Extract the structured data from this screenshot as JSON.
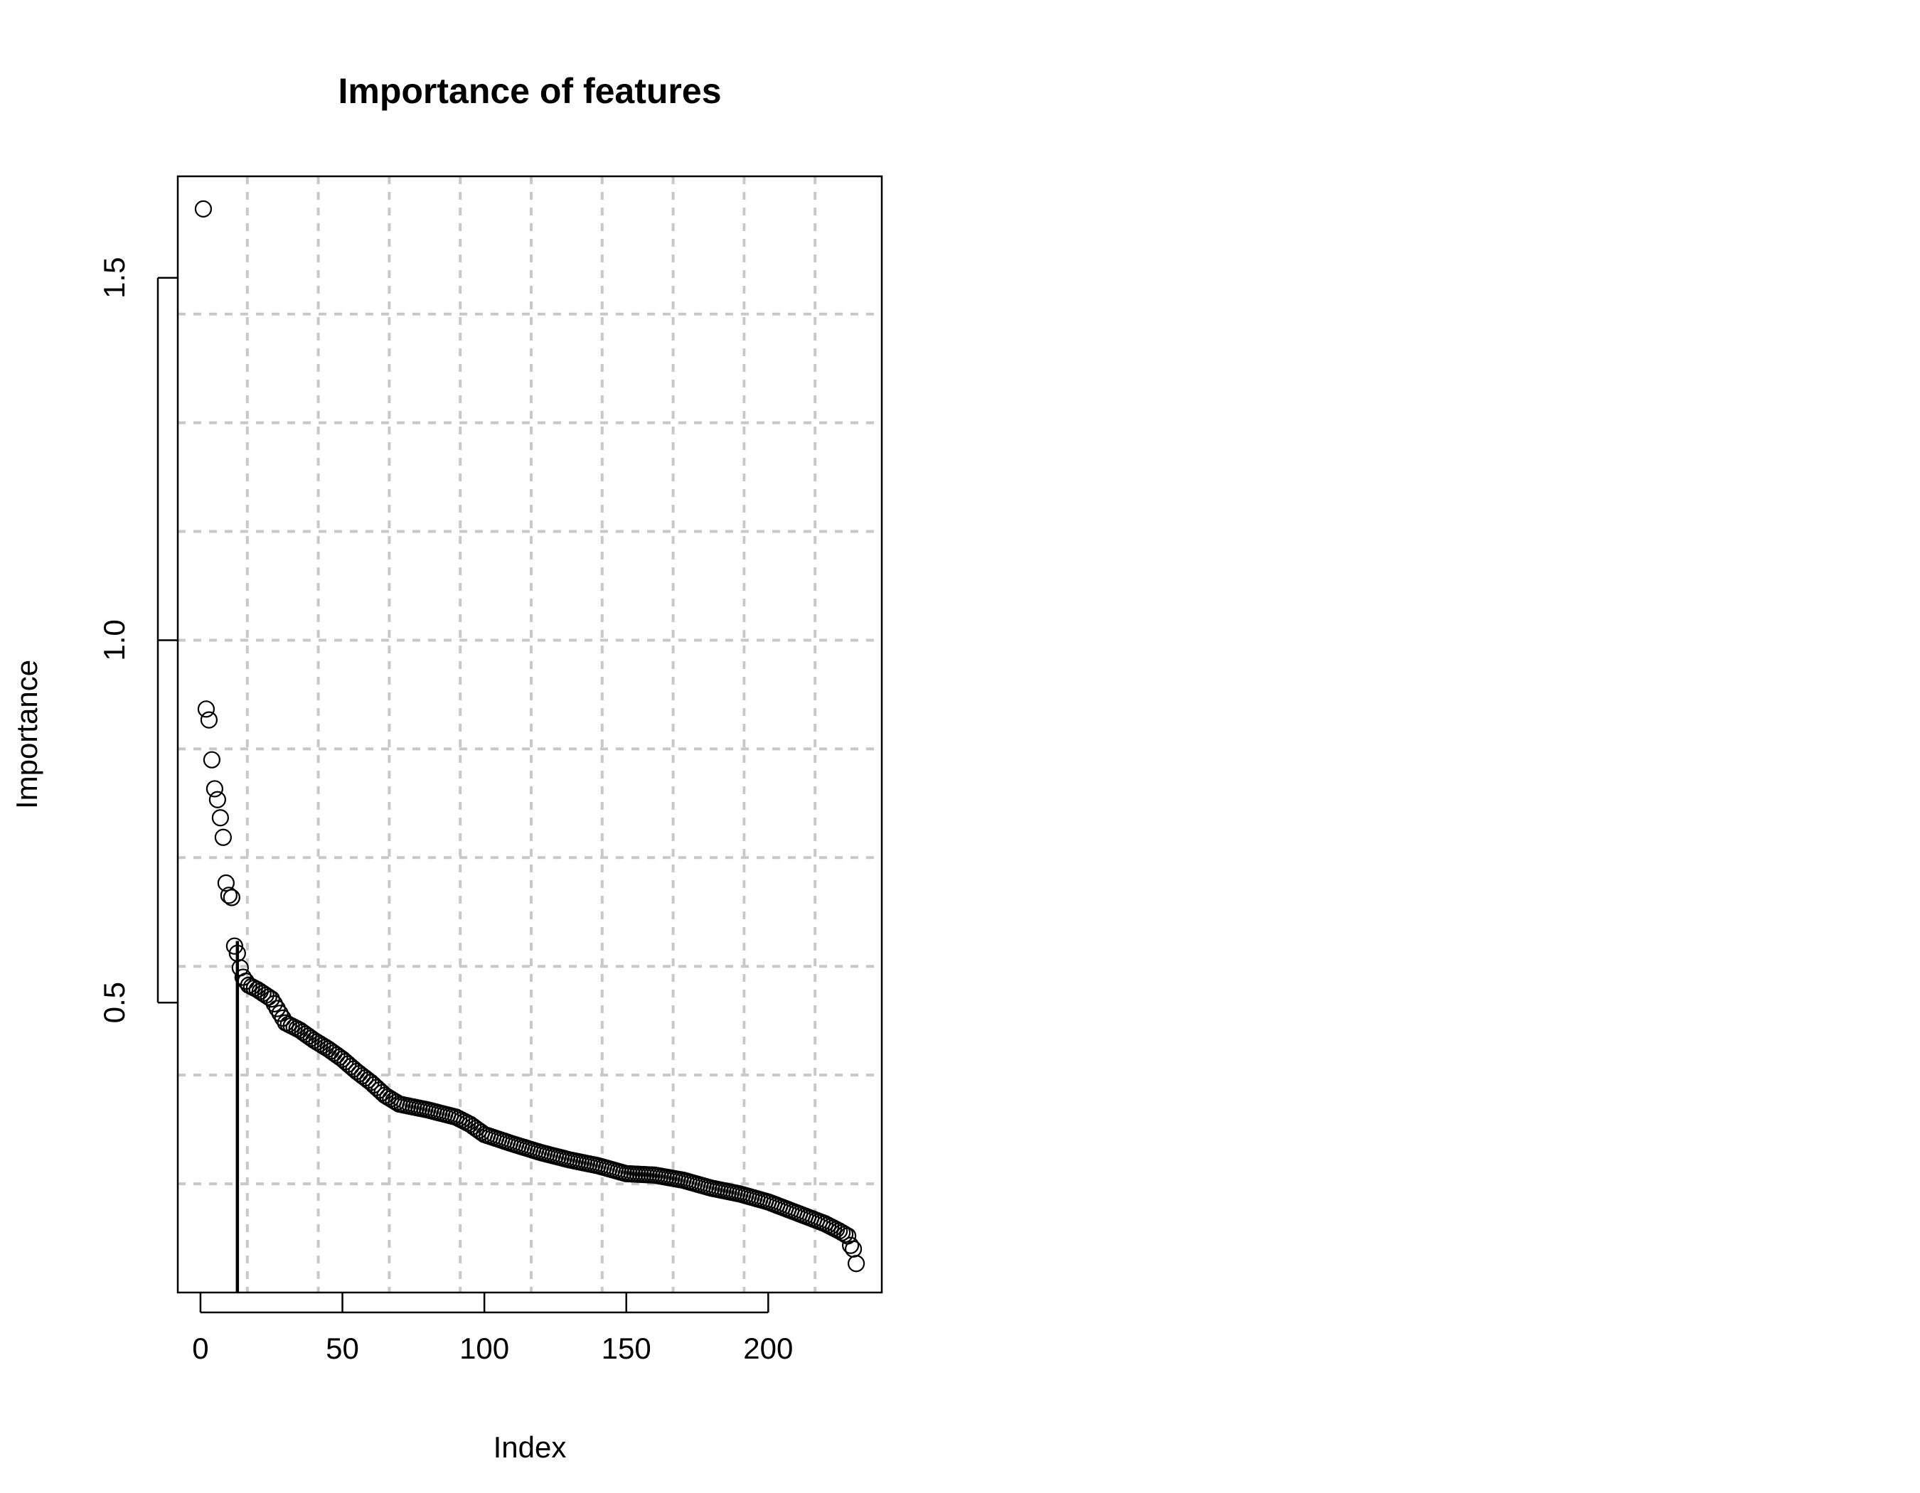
{
  "chart_data": {
    "type": "scatter",
    "title": "Importance of features",
    "xlabel": "Index",
    "ylabel": "Importance",
    "xlim": [
      -8,
      240
    ],
    "ylim": [
      0.1,
      1.64
    ],
    "xticks": [
      0,
      50,
      100,
      150,
      200
    ],
    "xtick_labels": [
      "0",
      "50",
      "100",
      "150",
      "200"
    ],
    "yticks": [
      0.5,
      1.0,
      1.5
    ],
    "ytick_labels": [
      "0.5",
      "1.0",
      "1.5"
    ],
    "grid": true,
    "grid_x": [
      16.5,
      41.5,
      66.5,
      91.5,
      116.5,
      141.5,
      166.5,
      191.5,
      216.5
    ],
    "grid_y": [
      0.25,
      0.4,
      0.55,
      0.7,
      0.85,
      1.0,
      1.15,
      1.3,
      1.45
    ],
    "cutoff_index": 13,
    "cutoff_top": 0.585,
    "anchors": [
      [
        1,
        1.595
      ],
      [
        2,
        0.905
      ],
      [
        3,
        0.89
      ],
      [
        4,
        0.835
      ],
      [
        5,
        0.795
      ],
      [
        6,
        0.78
      ],
      [
        7,
        0.755
      ],
      [
        8,
        0.728
      ],
      [
        9,
        0.665
      ],
      [
        10,
        0.648
      ],
      [
        11,
        0.645
      ],
      [
        12,
        0.578
      ],
      [
        13,
        0.568
      ],
      [
        14,
        0.548
      ],
      [
        15,
        0.535
      ],
      [
        17,
        0.524
      ],
      [
        20,
        0.518
      ],
      [
        25,
        0.505
      ],
      [
        30,
        0.472
      ],
      [
        35,
        0.462
      ],
      [
        40,
        0.448
      ],
      [
        45,
        0.436
      ],
      [
        50,
        0.422
      ],
      [
        55,
        0.405
      ],
      [
        60,
        0.39
      ],
      [
        65,
        0.372
      ],
      [
        70,
        0.36
      ],
      [
        80,
        0.352
      ],
      [
        90,
        0.342
      ],
      [
        95,
        0.332
      ],
      [
        100,
        0.318
      ],
      [
        110,
        0.305
      ],
      [
        120,
        0.293
      ],
      [
        130,
        0.283
      ],
      [
        140,
        0.275
      ],
      [
        150,
        0.264
      ],
      [
        160,
        0.262
      ],
      [
        170,
        0.255
      ],
      [
        180,
        0.244
      ],
      [
        190,
        0.236
      ],
      [
        200,
        0.225
      ],
      [
        210,
        0.21
      ],
      [
        220,
        0.195
      ],
      [
        225,
        0.185
      ],
      [
        228,
        0.178
      ],
      [
        229,
        0.165
      ],
      [
        230,
        0.16
      ],
      [
        231,
        0.14
      ]
    ]
  }
}
